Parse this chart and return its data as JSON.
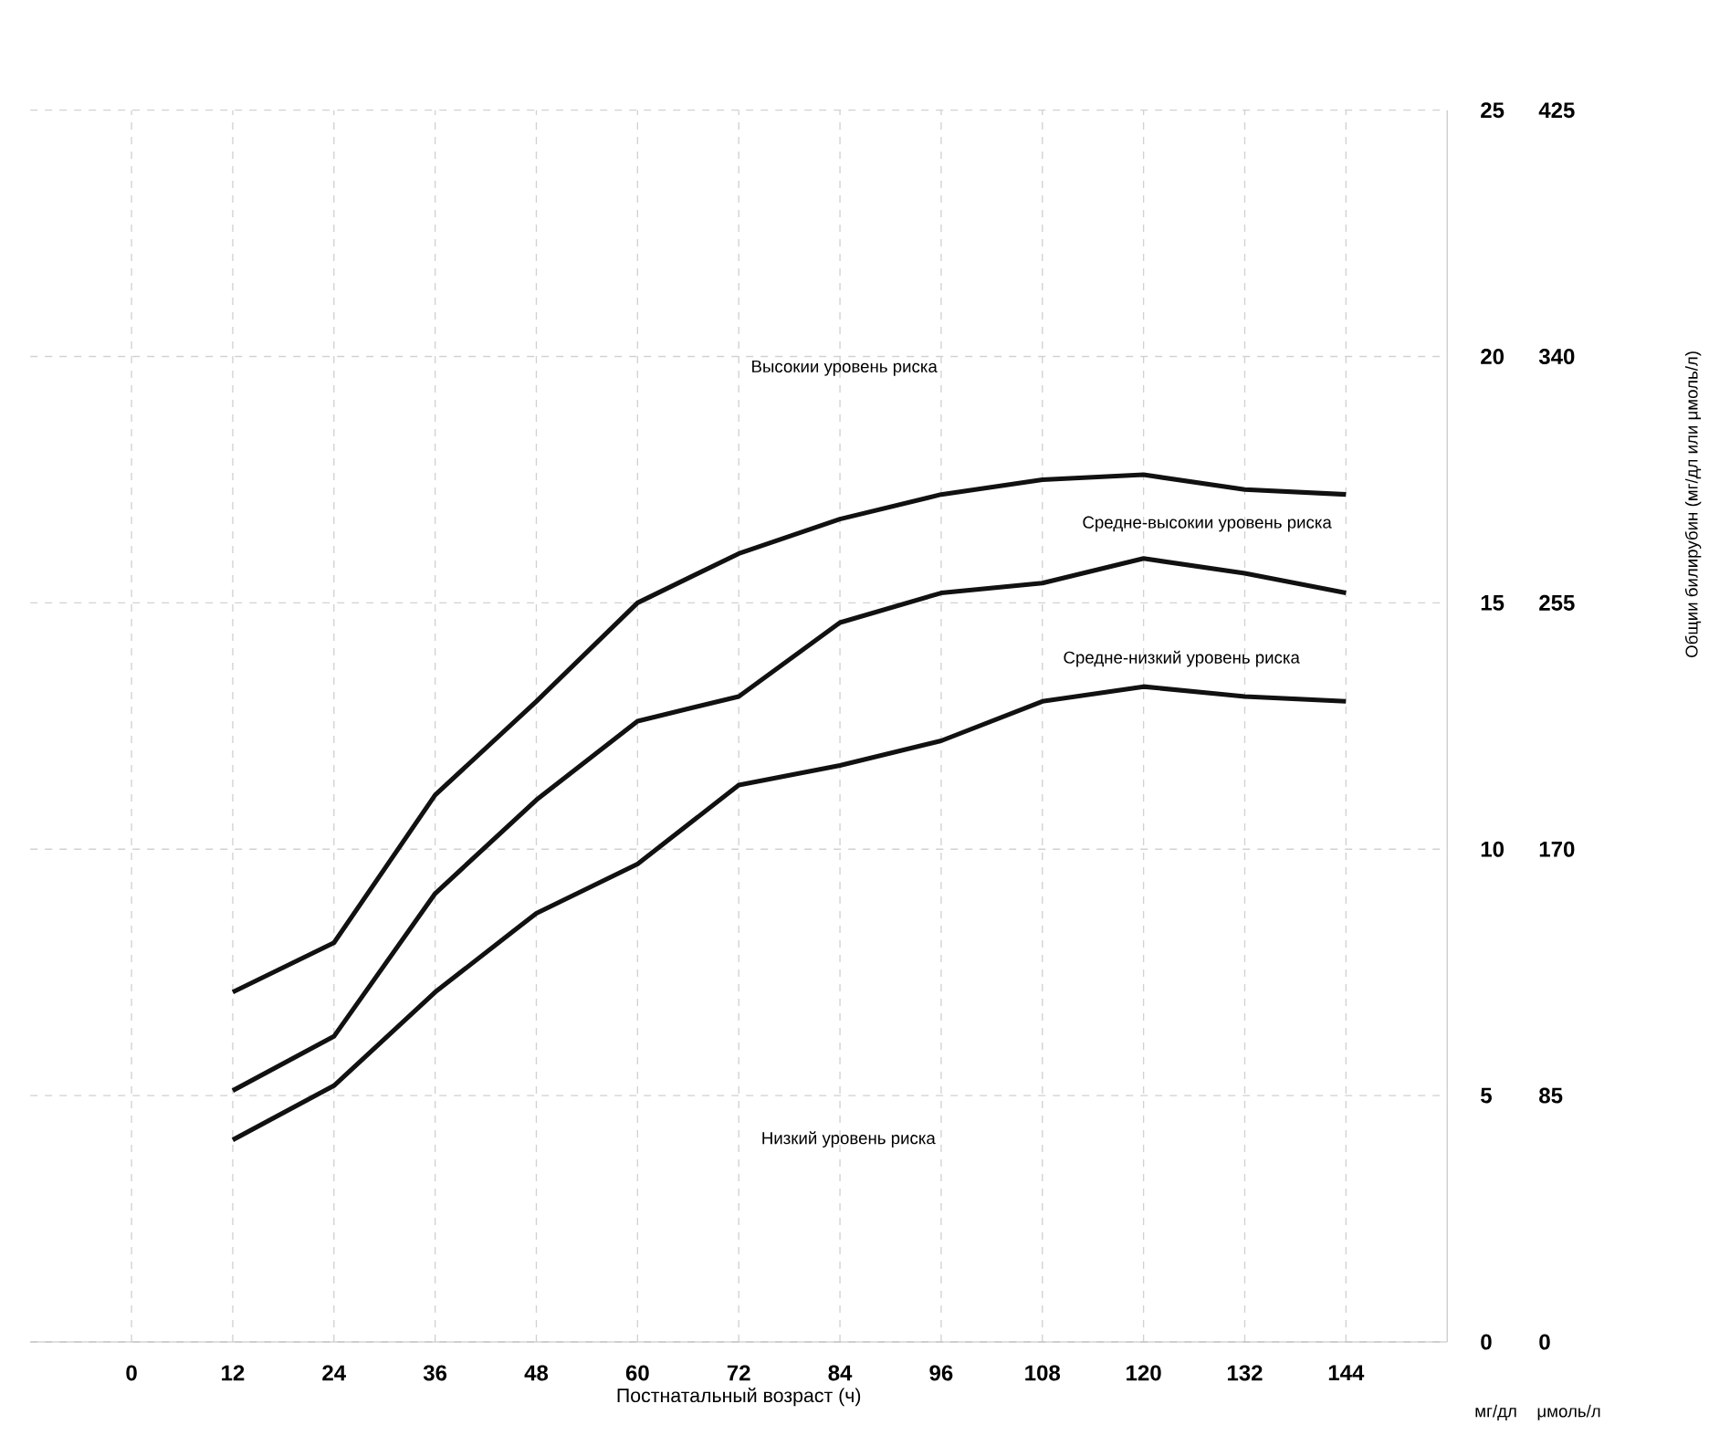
{
  "chart_data": {
    "type": "line",
    "xlabel": "Постнатальный возраст (ч)",
    "x": [
      12,
      24,
      36,
      48,
      60,
      72,
      84,
      96,
      108,
      120,
      132,
      144
    ],
    "series": [
      {
        "color": "#111111",
        "values": [
          7.1,
          8.1,
          11.1,
          13.0,
          15.0,
          16.0,
          16.7,
          17.2,
          17.5,
          17.6,
          17.3,
          17.2
        ]
      },
      {
        "color": "#111111",
        "values": [
          5.1,
          6.2,
          9.1,
          11.0,
          12.6,
          13.1,
          14.6,
          15.2,
          15.4,
          15.9,
          15.6,
          15.2
        ]
      },
      {
        "color": "#111111",
        "values": [
          4.1,
          5.2,
          7.1,
          8.7,
          9.7,
          11.3,
          11.7,
          12.2,
          13.0,
          13.3,
          13.1,
          13.0
        ]
      }
    ],
    "xlim": [
      -12,
      156
    ],
    "xticks": [
      0,
      12,
      24,
      36,
      48,
      60,
      72,
      84,
      96,
      108,
      120,
      132,
      144
    ],
    "ylim": [
      0,
      25
    ],
    "yticks": [
      0,
      5,
      10,
      15,
      20,
      25
    ],
    "y2lim": [
      0,
      425
    ],
    "y2ticks": [
      0,
      85,
      170,
      255,
      340,
      425
    ],
    "grid": true,
    "marker": "none",
    "line_style": "solid",
    "annotations": [
      "Высокии уровень риска",
      "Средне-высокии уровень риска",
      "Средне-низкий уровень риска",
      "Низкий уровень риска",
      "мг/дл",
      "μмоль/л",
      "Общии билирубин (мг/дл или μмоль/л)"
    ]
  }
}
